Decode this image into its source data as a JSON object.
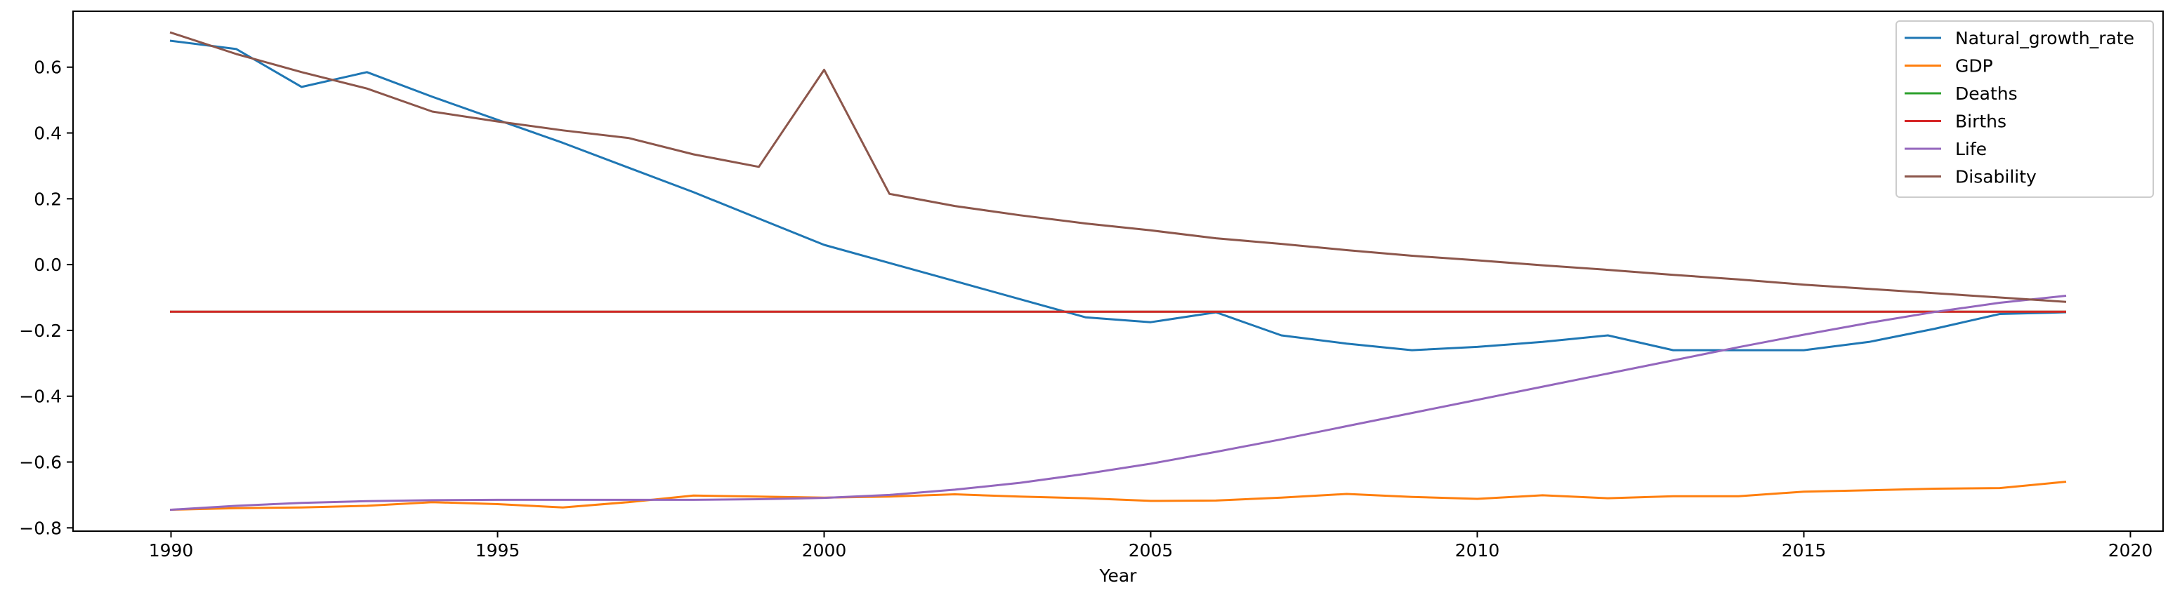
{
  "chart_data": {
    "type": "line",
    "title": "",
    "xlabel": "Year",
    "ylabel": "",
    "xlim": [
      1988.5,
      2020.5
    ],
    "ylim": [
      -0.81,
      0.77
    ],
    "xticks": [
      1990,
      1995,
      2000,
      2005,
      2010,
      2015,
      2020
    ],
    "yticks": [
      -0.8,
      -0.6,
      -0.4,
      -0.2,
      0.0,
      0.2,
      0.4,
      0.6
    ],
    "ytick_labels": [
      "−0.8",
      "−0.6",
      "−0.4",
      "−0.2",
      "0.0",
      "0.2",
      "0.4",
      "0.6"
    ],
    "grid": false,
    "legend_position": "top-right",
    "x": [
      1990,
      1991,
      1992,
      1993,
      1994,
      1995,
      1996,
      1997,
      1998,
      1999,
      2000,
      2001,
      2002,
      2003,
      2004,
      2005,
      2006,
      2007,
      2008,
      2009,
      2010,
      2011,
      2012,
      2013,
      2014,
      2015,
      2016,
      2017,
      2018,
      2019
    ],
    "series": [
      {
        "name": "Natural_growth_rate",
        "color": "#1f77b4",
        "values": [
          0.68,
          0.655,
          0.54,
          0.585,
          0.51,
          0.44,
          0.37,
          0.295,
          0.22,
          0.14,
          0.06,
          0.005,
          -0.05,
          -0.105,
          -0.16,
          -0.175,
          -0.145,
          -0.215,
          -0.24,
          -0.26,
          -0.25,
          -0.235,
          -0.215,
          -0.26,
          -0.26,
          -0.26,
          -0.235,
          -0.195,
          -0.15,
          -0.145
        ]
      },
      {
        "name": "GDP",
        "color": "#ff7f0e",
        "values": [
          -0.745,
          -0.74,
          -0.738,
          -0.733,
          -0.722,
          -0.728,
          -0.738,
          -0.722,
          -0.702,
          -0.705,
          -0.708,
          -0.705,
          -0.698,
          -0.705,
          -0.71,
          -0.718,
          -0.717,
          -0.708,
          -0.697,
          -0.706,
          -0.712,
          -0.701,
          -0.71,
          -0.704,
          -0.704,
          -0.69,
          -0.686,
          -0.681,
          -0.679,
          -0.66
        ]
      },
      {
        "name": "Deaths",
        "color": "#2ca02c",
        "values": [
          -0.143,
          -0.143,
          -0.143,
          -0.143,
          -0.143,
          -0.143,
          -0.143,
          -0.143,
          -0.143,
          -0.143,
          -0.143,
          -0.143,
          -0.143,
          -0.143,
          -0.143,
          -0.143,
          -0.143,
          -0.143,
          -0.143,
          -0.143,
          -0.143,
          -0.143,
          -0.143,
          -0.143,
          -0.143,
          -0.143,
          -0.143,
          -0.143,
          -0.143,
          -0.143
        ]
      },
      {
        "name": "Births",
        "color": "#d62728",
        "values": [
          -0.143,
          -0.143,
          -0.143,
          -0.143,
          -0.143,
          -0.143,
          -0.143,
          -0.143,
          -0.143,
          -0.143,
          -0.143,
          -0.143,
          -0.143,
          -0.143,
          -0.143,
          -0.143,
          -0.143,
          -0.143,
          -0.143,
          -0.143,
          -0.143,
          -0.143,
          -0.143,
          -0.143,
          -0.143,
          -0.143,
          -0.143,
          -0.143,
          -0.143,
          -0.143
        ]
      },
      {
        "name": "Life",
        "color": "#9467bd",
        "values": [
          -0.745,
          -0.733,
          -0.724,
          -0.719,
          -0.716,
          -0.715,
          -0.715,
          -0.715,
          -0.715,
          -0.713,
          -0.709,
          -0.7,
          -0.684,
          -0.663,
          -0.636,
          -0.605,
          -0.569,
          -0.531,
          -0.491,
          -0.451,
          -0.411,
          -0.371,
          -0.331,
          -0.291,
          -0.251,
          -0.213,
          -0.177,
          -0.144,
          -0.116,
          -0.095
        ]
      },
      {
        "name": "Disability",
        "color": "#8c564b",
        "values": [
          0.705,
          0.64,
          0.585,
          0.535,
          0.465,
          0.435,
          0.408,
          0.385,
          0.335,
          0.297,
          0.592,
          0.215,
          0.178,
          0.15,
          0.125,
          0.104,
          0.08,
          0.063,
          0.044,
          0.027,
          0.013,
          -0.002,
          -0.016,
          -0.031,
          -0.045,
          -0.061,
          -0.074,
          -0.087,
          -0.1,
          -0.113
        ]
      }
    ]
  }
}
